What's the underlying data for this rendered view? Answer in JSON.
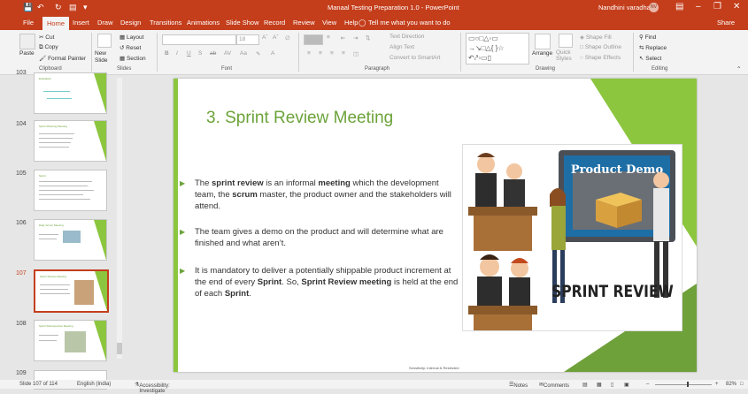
{
  "titlebar": {
    "title": "Manaal Testing Preparation 1.0  -  PowerPoint",
    "user_name": "Nandhini varadhan",
    "user_initials": "NV"
  },
  "tabs": [
    "File",
    "Home",
    "Insert",
    "Draw",
    "Design",
    "Transitions",
    "Animations",
    "Slide Show",
    "Record",
    "Review",
    "View",
    "Help"
  ],
  "tell_me": "Tell me what you want to do",
  "share": "Share",
  "ribbon": {
    "clipboard": {
      "paste": "Paste",
      "cut": "Cut",
      "copy": "Copy",
      "format_painter": "Format Painter",
      "label": "Clipboard"
    },
    "slides": {
      "new_slide": "New Slide",
      "layout": "Layout",
      "reset": "Reset",
      "section": "Section",
      "label": "Slides"
    },
    "font": {
      "size": "18",
      "label": "Font"
    },
    "paragraph": {
      "text_direction": "Text Direction",
      "align_text": "Align Text",
      "convert": "Convert to SmartArt",
      "label": "Paragraph"
    },
    "drawing": {
      "arrange": "Arrange",
      "quick_styles": "Quick Styles",
      "shape_fill": "Shape Fill",
      "shape_outline": "Shape Outline",
      "shape_effects": "Shape Effects",
      "label": "Drawing"
    },
    "editing": {
      "find": "Find",
      "replace": "Replace",
      "select": "Select",
      "label": "Editing"
    }
  },
  "thumbnails": [
    {
      "num": "103",
      "title": "Evaluation"
    },
    {
      "num": "104",
      "title": "Sprint Planning Meeting"
    },
    {
      "num": "105",
      "title": "Sprint"
    },
    {
      "num": "106",
      "title": "Daily Scrum Meeting"
    },
    {
      "num": "107",
      "title": "Sprint Review Meeting"
    },
    {
      "num": "108",
      "title": "Sprint Retrospective Meeting"
    },
    {
      "num": "109",
      "title": ""
    }
  ],
  "slide": {
    "title": "3. Sprint Review Meeting",
    "b1": {
      "t1": "The ",
      "k1": "sprint review",
      "t2": " is an informal ",
      "k2": "meeting",
      "t3": " which the development team, the ",
      "k3": "scrum",
      "t4": " master, the product owner and the stakeholders will attend."
    },
    "b2": {
      "t1": "The team gives a demo on the product and will determine what are finished and what aren’t."
    },
    "b3": {
      "t1": "It is mandatory to deliver a potentially shippable product increment at the end of every ",
      "k1": "Sprint",
      "t2": ". So, ",
      "k2": "Sprint Review meeting",
      "t3": " is held at the end of each ",
      "k3": "Sprint",
      "t4": "."
    },
    "art": {
      "board_title": "Product Demo",
      "sign": "SPRINT REVIEW"
    },
    "footer": "Sensitivity: Internal & Restricted"
  },
  "status": {
    "slide_info": "Slide 107 of 114",
    "language": "English (India)",
    "accessibility": "Accessibility: Investigate",
    "notes": "Notes",
    "comments": "Comments",
    "zoom": "82%"
  },
  "colors": {
    "accent": "#c43e1c",
    "slide_green": "#8cc63f",
    "title_green": "#6ca33a"
  }
}
